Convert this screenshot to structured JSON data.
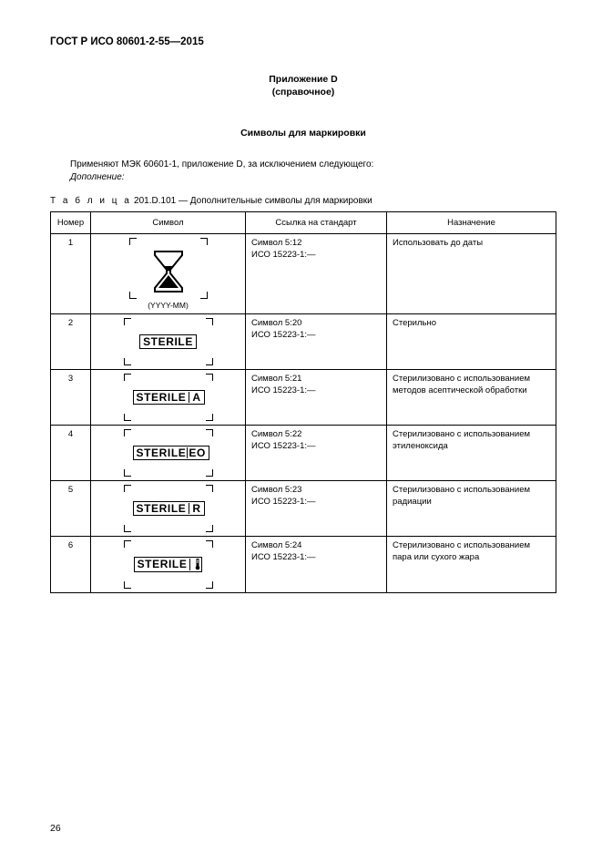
{
  "doc_id": "ГОСТ Р ИСО 80601-2-55—2015",
  "appendix_label": "Приложение D",
  "appendix_type": "(справочное)",
  "section_title": "Символы для маркировки",
  "intro_text": "Применяют МЭК 60601-1, приложение D, за исключением следующего:",
  "addendum_label": "Дополнение:",
  "table_caption_prefix": "Т а б л и ц а",
  "table_caption_rest": "  201.D.101 — Дополнительные символы для маркировки",
  "headers": {
    "num": "Номер",
    "sym": "Символ",
    "ref": "Ссылка на стандарт",
    "purpose": "Назначение"
  },
  "yyyymm": "(YYYY-MM)",
  "rows": [
    {
      "num": "1",
      "ref1": "Символ 5:12",
      "ref2": "ИСО 15223-1:—",
      "purpose": "Использовать до даты"
    },
    {
      "num": "2",
      "ref1": "Символ 5:20",
      "ref2": "ИСО 15223-1:—",
      "purpose": "Стерильно",
      "sterile": "STERILE"
    },
    {
      "num": "3",
      "ref1": "Символ 5:21",
      "ref2": "ИСО 15223-1:—",
      "purpose": "Стерилизовано с использо­ванием методов асептиче­ской обработки",
      "sterile": "STERILE",
      "suffix": "A"
    },
    {
      "num": "4",
      "ref1": "Символ 5:22",
      "ref2": "ИСО 15223-1:—",
      "purpose": "Стерилизовано с использо­ванием этиленоксида",
      "sterile": "STERILE",
      "suffix": "EO",
      "tight": true
    },
    {
      "num": "5",
      "ref1": "Символ 5:23",
      "ref2": "ИСО 15223-1:—",
      "purpose": "Стерилизовано с использо­ванием радиации",
      "sterile": "STERILE",
      "suffix": "R"
    },
    {
      "num": "6",
      "ref1": "Символ 5:24",
      "ref2": "ИСО 15223-1:—",
      "purpose": "Стерилизовано с исполь­зованием пара или сухого жара",
      "sterile": "STERILE",
      "thermo": true
    }
  ],
  "page_number": "26"
}
